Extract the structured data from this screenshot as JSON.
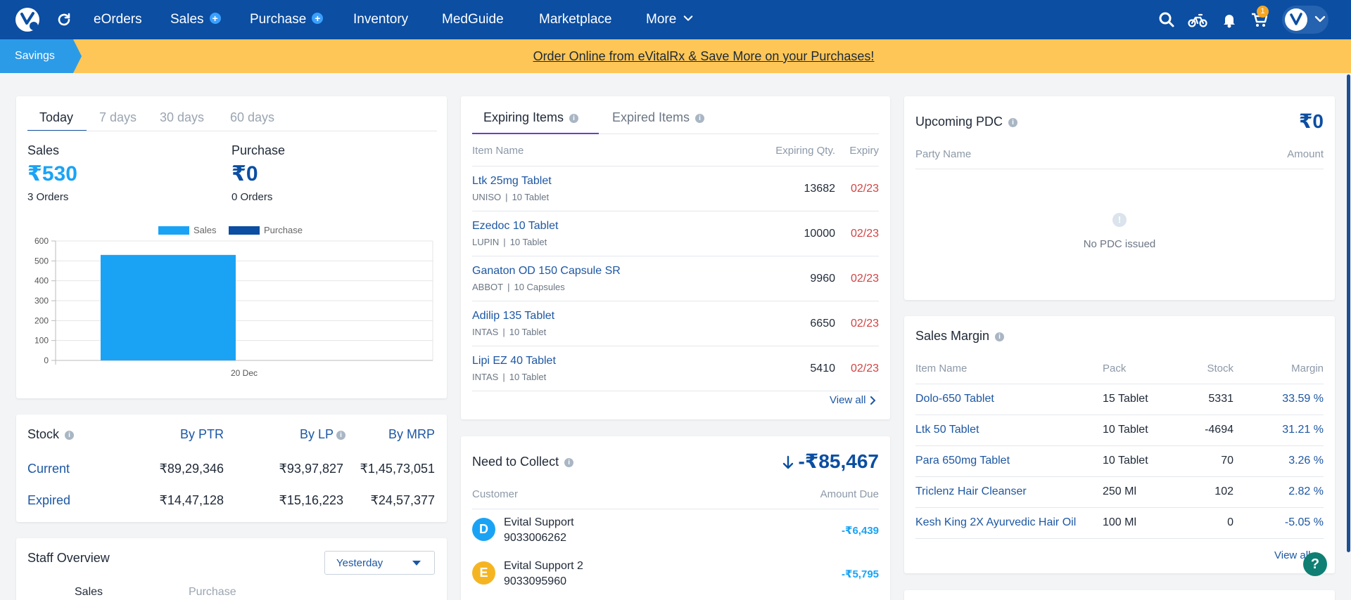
{
  "nav": {
    "links": [
      "eOrders",
      "Sales",
      "Purchase",
      "Inventory",
      "MedGuide",
      "Marketplace",
      "More"
    ],
    "plus": "+",
    "cart_count": "1"
  },
  "banner": {
    "tag": "Savings",
    "text": "Order Online from eVitalRx & Save More on your Purchases!"
  },
  "summary": {
    "tabs": [
      "Today",
      "7 days",
      "30 days",
      "60 days"
    ],
    "sales_label": "Sales",
    "sales_value": "₹530",
    "sales_orders": "3 Orders",
    "purchase_label": "Purchase",
    "purchase_value": "₹0",
    "purchase_orders": "0 Orders"
  },
  "chart_data": {
    "type": "bar",
    "categories": [
      "20 Dec"
    ],
    "series": [
      {
        "name": "Sales",
        "values": [
          530
        ],
        "color": "#1aa3f5"
      },
      {
        "name": "Purchase",
        "values": [
          0
        ],
        "color": "#0b4ea2"
      }
    ],
    "ylim": [
      0,
      600
    ],
    "yticks": [
      "0",
      "100",
      "200",
      "300",
      "400",
      "500",
      "600"
    ],
    "legend": "top-center",
    "grid": true
  },
  "stock": {
    "title": "Stock",
    "headers": [
      "By PTR",
      "By LP",
      "By MRP"
    ],
    "rows": [
      {
        "label": "Current",
        "values": [
          "₹89,29,346",
          "₹93,97,827",
          "₹1,45,73,051"
        ]
      },
      {
        "label": "Expired",
        "values": [
          "₹14,47,128",
          "₹15,16,223",
          "₹24,57,377"
        ]
      }
    ]
  },
  "staff": {
    "title": "Staff Overview",
    "period": "Yesterday",
    "tabs": [
      "Sales",
      "Purchase"
    ]
  },
  "expiring": {
    "tabs": [
      "Expiring Items",
      "Expired Items"
    ],
    "headers": [
      "Item Name",
      "Expiring Qty.",
      "Expiry"
    ],
    "rows": [
      {
        "name": "Ltk 25mg Tablet",
        "mfr": "UNISO",
        "pack": "10 Tablet",
        "qty": "13682",
        "expiry": "02/23"
      },
      {
        "name": "Ezedoc 10 Tablet",
        "mfr": "LUPIN",
        "pack": "10 Tablet",
        "qty": "10000",
        "expiry": "02/23"
      },
      {
        "name": "Ganaton OD 150 Capsule SR",
        "mfr": "ABBOT",
        "pack": "10 Capsules",
        "qty": "9960",
        "expiry": "02/23"
      },
      {
        "name": "Adilip 135 Tablet",
        "mfr": "INTAS",
        "pack": "10 Tablet",
        "qty": "6650",
        "expiry": "02/23"
      },
      {
        "name": "Lipi EZ 40 Tablet",
        "mfr": "INTAS",
        "pack": "10 Tablet",
        "qty": "5410",
        "expiry": "02/23"
      }
    ],
    "separator": "|",
    "view_all": "View all"
  },
  "collect": {
    "title": "Need to Collect",
    "amount": "-₹85,467",
    "headers": [
      "Customer",
      "Amount Due"
    ],
    "rows": [
      {
        "initial": "D",
        "name": "Evital Support",
        "phone": "9033006262",
        "amount": "-₹6,439",
        "color": "#1aa3f5"
      },
      {
        "initial": "E",
        "name": "Evital Support 2",
        "phone": "9033095960",
        "amount": "-₹5,795",
        "color": "#f5b523"
      }
    ]
  },
  "pdc": {
    "title": "Upcoming PDC",
    "amount": "₹0",
    "headers": [
      "Party Name",
      "Amount"
    ],
    "empty": "No PDC issued",
    "empty_icon": "!"
  },
  "margin": {
    "title": "Sales Margin",
    "headers": [
      "Item Name",
      "Pack",
      "Stock",
      "Margin"
    ],
    "rows": [
      {
        "name": "Dolo-650 Tablet",
        "pack": "15 Tablet",
        "stock": "5331",
        "margin": "33.59 %"
      },
      {
        "name": "Ltk 50 Tablet",
        "pack": "10 Tablet",
        "stock": "-4694",
        "margin": "31.21 %"
      },
      {
        "name": "Para 650mg Tablet",
        "pack": "10 Tablet",
        "stock": "70",
        "margin": "3.26 %"
      },
      {
        "name": "Triclenz Hair Cleanser",
        "pack": "250 Ml",
        "stock": "102",
        "margin": "2.82 %"
      },
      {
        "name": "Kesh King 2X Ayurvedic Hair Oil",
        "pack": "100 Ml",
        "stock": "0",
        "margin": "-5.05 %"
      }
    ],
    "view_all": "View all"
  },
  "help": "?",
  "info": "i",
  "colors": {
    "brand": "#0b4ea2",
    "accent": "#1aa3f5",
    "banner": "#fdc656",
    "danger": "#d14343"
  }
}
